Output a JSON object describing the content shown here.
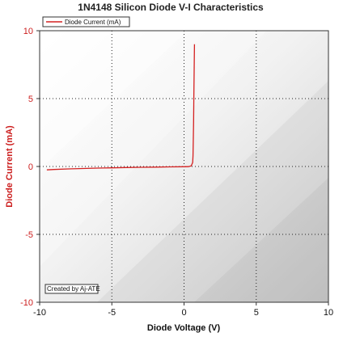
{
  "chart_data": {
    "type": "line",
    "title": "1N4148 Silicon Diode V-I Characteristics",
    "xlabel": "Diode Voltage (V)",
    "ylabel": "Diode Current (mA)",
    "xlim": [
      -10,
      10
    ],
    "ylim": [
      -10,
      10
    ],
    "xticks": [
      "-10",
      "-5",
      "0",
      "5",
      "10"
    ],
    "yticks": [
      "10",
      "5",
      "0",
      "-5",
      "-10"
    ],
    "grid": true,
    "legend_position": "top-left",
    "series": [
      {
        "name": "Diode Current (mA)",
        "color": "#d42020",
        "x": [
          -9.5,
          -9.0,
          -8.0,
          -7.0,
          -6.0,
          -5.0,
          -4.0,
          -3.0,
          -2.0,
          -1.0,
          0.0,
          0.3,
          0.5,
          0.6,
          0.62,
          0.64,
          0.66,
          0.68,
          0.7,
          0.72
        ],
        "y": [
          -0.25,
          -0.22,
          -0.18,
          -0.15,
          -0.12,
          -0.1,
          -0.08,
          -0.06,
          -0.05,
          -0.03,
          -0.02,
          -0.01,
          0.05,
          0.3,
          0.8,
          1.8,
          3.2,
          5.0,
          7.0,
          9.0
        ]
      }
    ],
    "annotation": "Created by Aj-ATE"
  }
}
